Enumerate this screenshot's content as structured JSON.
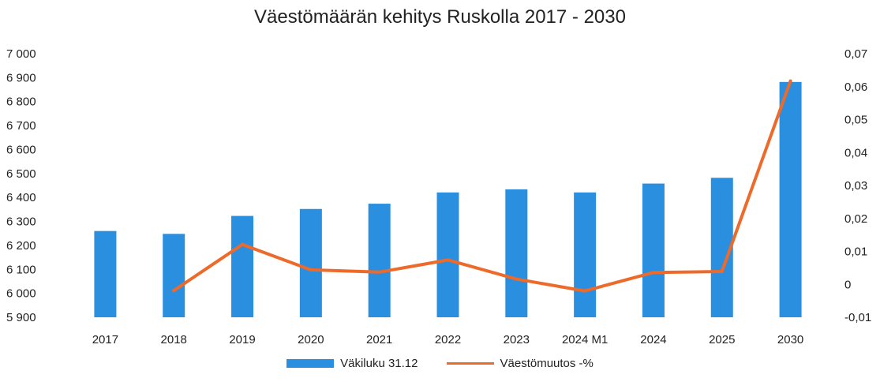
{
  "chart_data": {
    "type": "bar+line",
    "title": "Väestömäärän kehitys Ruskolla 2017 - 2030",
    "categories": [
      "2017",
      "2018",
      "2019",
      "2020",
      "2021",
      "2022",
      "2023",
      "2024 M1",
      "2024",
      "2025",
      "2030"
    ],
    "series": [
      {
        "name": "Väkiluku 31.12",
        "type": "bar",
        "axis": "left",
        "color": "#2b8fe0",
        "values": [
          6260,
          6248,
          6323,
          6352,
          6374,
          6421,
          6434,
          6421,
          6458,
          6482,
          6882
        ]
      },
      {
        "name": "Väestömuutos -%",
        "type": "line",
        "axis": "right",
        "color": "#ee6a2a",
        "values": [
          null,
          -0.0019,
          0.0121,
          0.0044,
          0.0037,
          0.0074,
          0.0016,
          -0.002,
          0.0036,
          0.0039,
          0.0617
        ]
      }
    ],
    "y_left": {
      "min": 5900,
      "max": 7000,
      "step": 100,
      "tick_labels": [
        "5 900",
        "6 000",
        "6 100",
        "6 200",
        "6 300",
        "6 400",
        "6 500",
        "6 600",
        "6 700",
        "6 800",
        "6 900",
        "7 000"
      ]
    },
    "y_right": {
      "min": -0.01,
      "max": 0.07,
      "step": 0.01,
      "tick_labels": [
        "-0,01",
        "0",
        "0,01",
        "0,02",
        "0,03",
        "0,04",
        "0,05",
        "0,06",
        "0,07"
      ]
    },
    "grid": false,
    "legend": "bottom"
  }
}
